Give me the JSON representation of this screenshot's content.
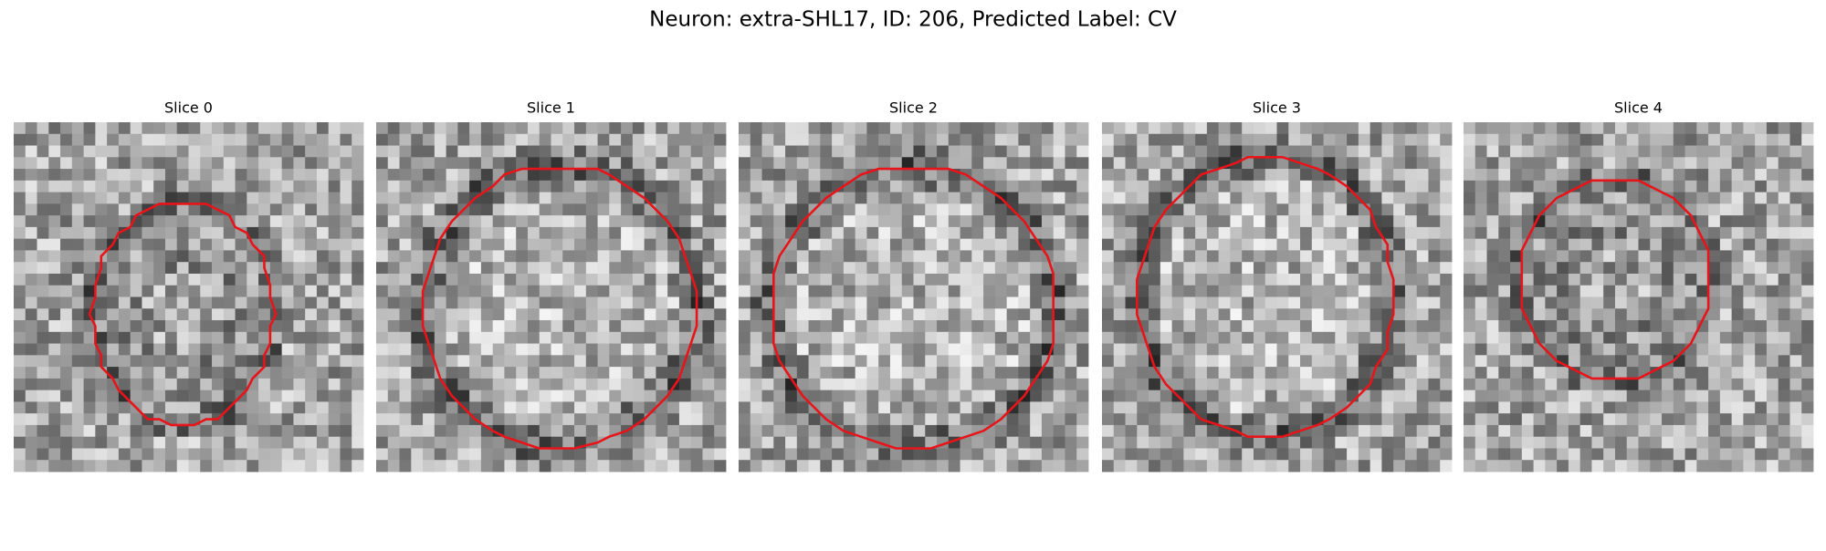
{
  "title": "Neuron: extra-SHL17, ID: 206, Predicted Label: CV",
  "panels": [
    {
      "title": "Slice 0"
    },
    {
      "title": "Slice 1"
    },
    {
      "title": "Slice 2"
    },
    {
      "title": "Slice 3"
    },
    {
      "title": "Slice 4"
    }
  ]
}
